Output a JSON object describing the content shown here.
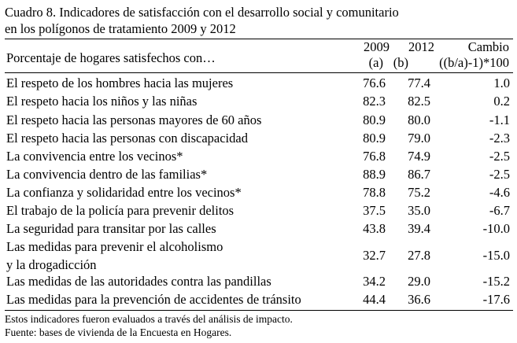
{
  "title": {
    "line1": "Cuadro 8. Indicadores de satisfacción con el desarrollo social y comunitario",
    "line2": "en los polígonos de tratamiento 2009 y 2012"
  },
  "header": {
    "label": "Porcentaje de hogares satisfechos con…",
    "col1_line1": "2009",
    "col1_line2": "(a)",
    "col2_line1": "2012",
    "col2_line2": "(b)",
    "col3_line1": "Cambio",
    "col3_line2": "((b/a)-1)*100"
  },
  "rows": [
    {
      "label": "El respeto de los hombres hacia las mujeres",
      "v2009": "76.6",
      "v2012": "77.4",
      "change": "1.0"
    },
    {
      "label": "El respeto hacia los niños y las niñas",
      "v2009": "82.3",
      "v2012": "82.5",
      "change": "0.2"
    },
    {
      "label": "El respeto hacia las personas mayores de 60 años",
      "v2009": "80.9",
      "v2012": "80.0",
      "change": "-1.1"
    },
    {
      "label": "El respeto hacia las personas con discapacidad",
      "v2009": "80.9",
      "v2012": "79.0",
      "change": "-2.3"
    },
    {
      "label": "La convivencia entre los vecinos*",
      "v2009": "76.8",
      "v2012": "74.9",
      "change": "-2.5"
    },
    {
      "label": "La convivencia dentro de las familias*",
      "v2009": "88.9",
      "v2012": "86.7",
      "change": "-2.5"
    },
    {
      "label": "La confianza y solidaridad entre los vecinos*",
      "v2009": "78.8",
      "v2012": "75.2",
      "change": "-4.6"
    },
    {
      "label": "El trabajo de la policía para prevenir delitos",
      "v2009": "37.5",
      "v2012": "35.0",
      "change": "-6.7"
    },
    {
      "label": "La seguridad para transitar por las calles",
      "v2009": "43.8",
      "v2012": "39.4",
      "change": "-10.0"
    },
    {
      "label": "Las medidas para prevenir el alcoholismo",
      "label_line2": "y la drogadicción",
      "v2009": "32.7",
      "v2012": "27.8",
      "change": "-15.0"
    },
    {
      "label": "Las medidas de las autoridades contra las pandillas",
      "v2009": "34.2",
      "v2012": "29.0",
      "change": "-15.2"
    },
    {
      "label": "Las medidas para la prevención de accidentes de tránsito",
      "v2009": "44.4",
      "v2012": "36.6",
      "change": "-17.6"
    }
  ],
  "footnotes": {
    "note": "Estos indicadores fueron evaluados a través del análisis de impacto.",
    "source": "Fuente: bases de vivienda de la Encuesta en Hogares."
  }
}
